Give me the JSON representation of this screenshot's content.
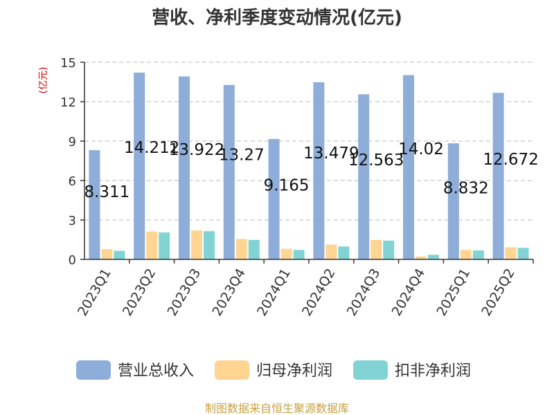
{
  "chart_data": {
    "type": "bar",
    "title": "营收、净利季度变动情况(亿元)",
    "ylabel": "(亿元)",
    "xlabel": "",
    "ylim": [
      0,
      15
    ],
    "yticks": [
      0,
      3,
      6,
      9,
      12,
      15
    ],
    "grid": true,
    "legend_position": "bottom",
    "categories": [
      "2023Q1",
      "2023Q2",
      "2023Q3",
      "2023Q4",
      "2024Q1",
      "2024Q2",
      "2024Q3",
      "2024Q4",
      "2025Q1",
      "2025Q2"
    ],
    "series": [
      {
        "name": "营业总收入",
        "color": "#8fadd9",
        "values": [
          8.311,
          14.212,
          13.922,
          13.27,
          9.165,
          13.479,
          12.563,
          14.02,
          8.832,
          12.672
        ],
        "labels": [
          "8.311",
          "14.212",
          "13.922",
          "13.27",
          "9.165",
          "13.479",
          "12.563",
          "14.02",
          "8.832",
          "12.672"
        ]
      },
      {
        "name": "归母净利润",
        "color": "#ffd591",
        "values": [
          0.78,
          2.12,
          2.2,
          1.55,
          0.8,
          1.12,
          1.48,
          0.22,
          0.72,
          0.92
        ]
      },
      {
        "name": "扣非净利润",
        "color": "#82d4d4",
        "values": [
          0.65,
          2.05,
          2.15,
          1.48,
          0.72,
          0.98,
          1.43,
          0.35,
          0.68,
          0.88
        ]
      }
    ]
  },
  "source": "制图数据来自恒生聚源数据库"
}
